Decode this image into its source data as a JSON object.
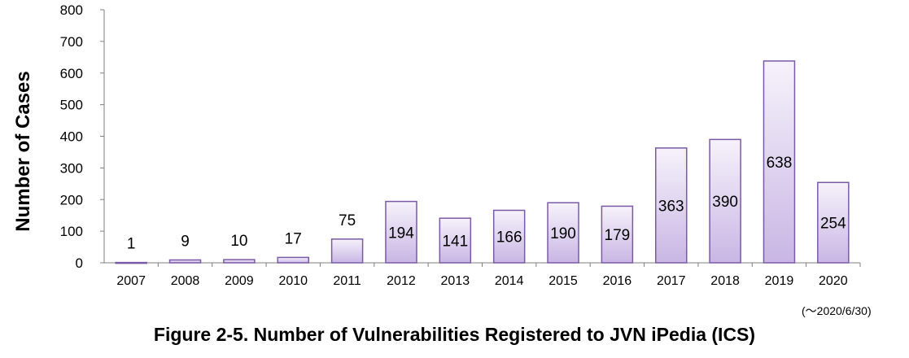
{
  "chart_data": {
    "type": "bar",
    "categories": [
      "2007",
      "2008",
      "2009",
      "2010",
      "2011",
      "2012",
      "2013",
      "2014",
      "2015",
      "2016",
      "2017",
      "2018",
      "2019",
      "2020"
    ],
    "values": [
      1,
      9,
      10,
      17,
      75,
      194,
      141,
      166,
      190,
      179,
      363,
      390,
      638,
      254
    ],
    "ylabel": "Number of Cases",
    "xlabel": "",
    "ylim": [
      0,
      800
    ],
    "yticks": [
      0,
      100,
      200,
      300,
      400,
      500,
      600,
      700,
      800
    ],
    "grid": false,
    "legend": "none",
    "bar_fill_top": "#f6f2fb",
    "bar_fill_bottom": "#c9b6e4",
    "bar_stroke": "#7a5aa6"
  },
  "note": "(〜2020/6/30)",
  "caption": "Figure 2-5. Number of Vulnerabilities Registered to JVN iPedia (ICS)"
}
